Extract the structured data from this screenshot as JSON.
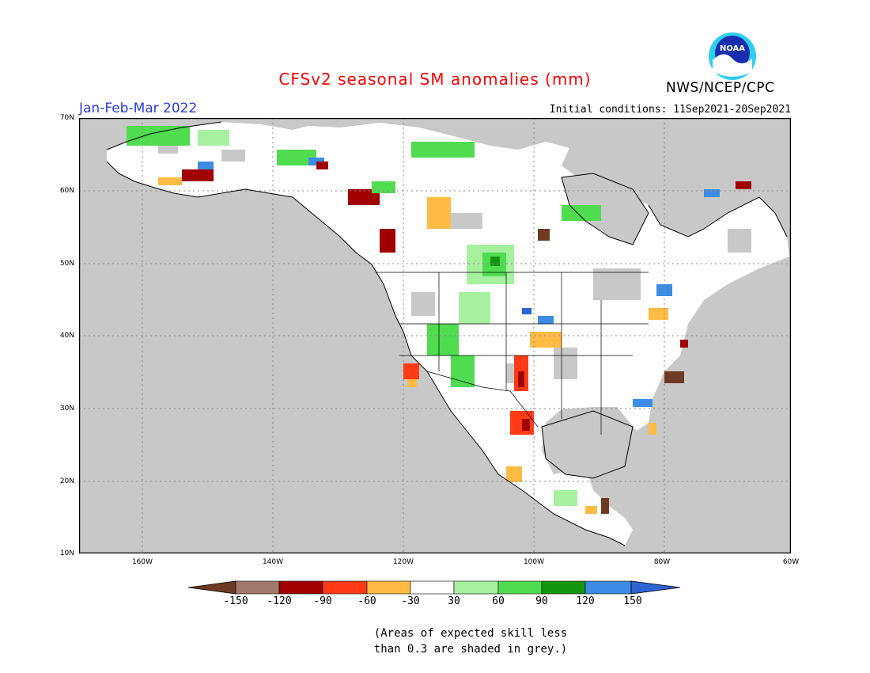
{
  "header": {
    "title": "CFSv2 seasonal SM anomalies (mm)",
    "period": "Jan-Feb-Mar 2022",
    "initial_conditions": "Initial conditions: 11Sep2021-20Sep2021",
    "agency": "NWS/NCEP/CPC",
    "logo_text": "NOAA"
  },
  "map": {
    "y_ticks": [
      "70N",
      "60N",
      "50N",
      "40N",
      "30N",
      "20N",
      "10N"
    ],
    "x_ticks": [
      "160W",
      "140W",
      "120W",
      "100W",
      "80W",
      "60W"
    ],
    "land_color": "#ffffff",
    "ocean_color": "#ffffff",
    "low_skill_color": "#c8c8c8"
  },
  "colorbar": {
    "labels": [
      "-150",
      "-120",
      "-90",
      "-60",
      "-30",
      "30",
      "60",
      "90",
      "120",
      "150"
    ],
    "colors": [
      "#6e3b22",
      "#a1796a",
      "#a00000",
      "#ff3a14",
      "#ffbb44",
      "#ffffff",
      "#a6f0a0",
      "#4fdc4f",
      "#129612",
      "#3c8ce6",
      "#2d64d2"
    ]
  },
  "footnote": {
    "line1": "(Areas of expected skill less",
    "line2": "than 0.3 are shaded in grey.)"
  }
}
